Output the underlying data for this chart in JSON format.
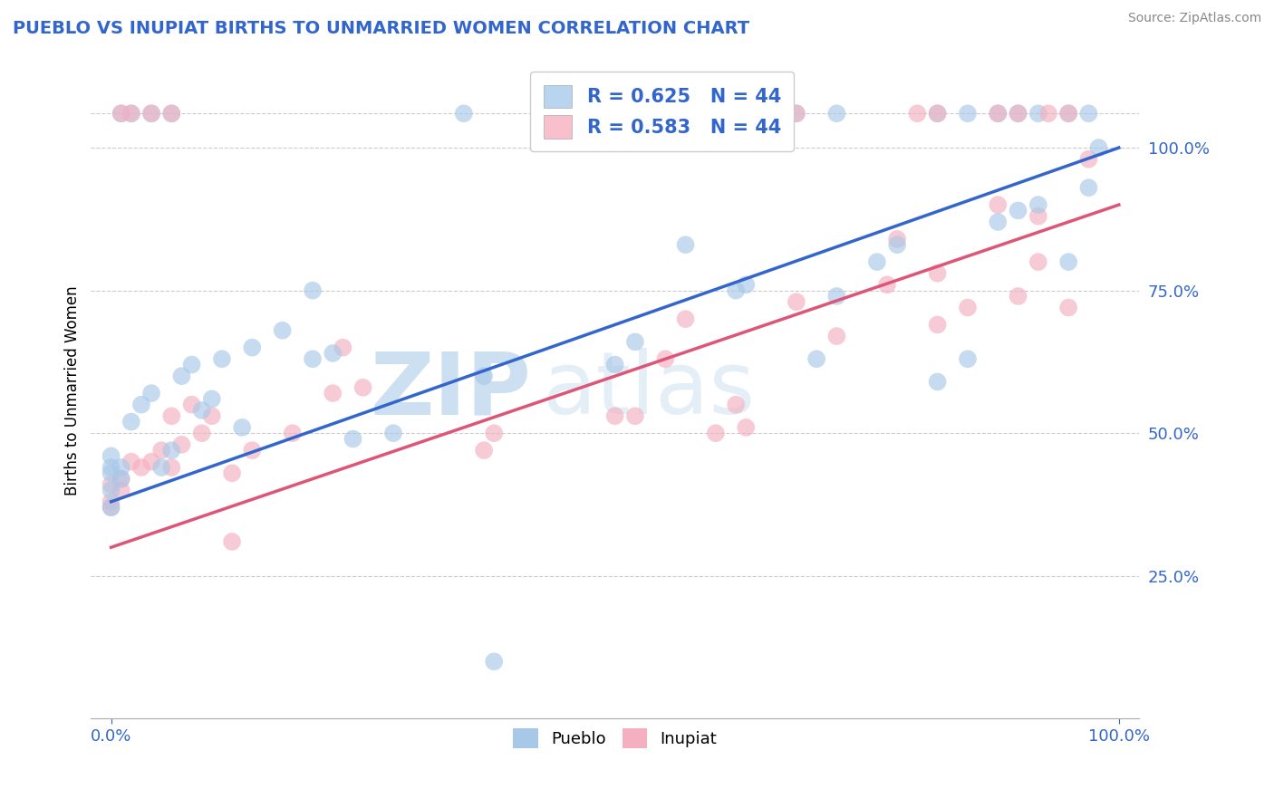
{
  "title": "PUEBLO VS INUPIAT BIRTHS TO UNMARRIED WOMEN CORRELATION CHART",
  "source_text": "Source: ZipAtlas.com",
  "ylabel": "Births to Unmarried Women",
  "xlim": [
    -0.02,
    1.02
  ],
  "ylim": [
    0.0,
    1.15
  ],
  "xtick_labels": [
    "0.0%",
    "100.0%"
  ],
  "xtick_values": [
    0.0,
    1.0
  ],
  "ytick_labels": [
    "25.0%",
    "50.0%",
    "75.0%",
    "100.0%"
  ],
  "ytick_values": [
    0.25,
    0.5,
    0.75,
    1.0
  ],
  "pueblo_color": "#a8c8e8",
  "inupiat_color": "#f4b0c0",
  "pueblo_line_color": "#3366cc",
  "inupiat_line_color": "#dd5577",
  "legend_box_color": "#b8d4ee",
  "legend_inupiat_box_color": "#f8c0cc",
  "R_pueblo": 0.625,
  "N_pueblo": 44,
  "R_inupiat": 0.583,
  "N_inupiat": 44,
  "watermark_zip": "ZIP",
  "watermark_atlas": "atlas",
  "pueblo_scatter_x": [
    0.0,
    0.0,
    0.0,
    0.0,
    0.0,
    0.01,
    0.01,
    0.02,
    0.03,
    0.04,
    0.05,
    0.06,
    0.07,
    0.08,
    0.09,
    0.1,
    0.11,
    0.13,
    0.14,
    0.17,
    0.2,
    0.22,
    0.24,
    0.28,
    0.37,
    0.38,
    0.5,
    0.52,
    0.57,
    0.62,
    0.63,
    0.7,
    0.72,
    0.76,
    0.78,
    0.82,
    0.85,
    0.88,
    0.9,
    0.92,
    0.95,
    0.97,
    0.98,
    0.2
  ],
  "pueblo_scatter_y": [
    0.37,
    0.4,
    0.43,
    0.44,
    0.46,
    0.42,
    0.44,
    0.52,
    0.55,
    0.57,
    0.44,
    0.47,
    0.6,
    0.62,
    0.54,
    0.56,
    0.63,
    0.51,
    0.65,
    0.68,
    0.63,
    0.64,
    0.49,
    0.5,
    0.6,
    0.1,
    0.62,
    0.66,
    0.83,
    0.75,
    0.76,
    0.63,
    0.74,
    0.8,
    0.83,
    0.59,
    0.63,
    0.87,
    0.89,
    0.9,
    0.8,
    0.93,
    1.0,
    0.75
  ],
  "inupiat_scatter_x": [
    0.0,
    0.0,
    0.0,
    0.01,
    0.01,
    0.02,
    0.03,
    0.04,
    0.05,
    0.06,
    0.06,
    0.07,
    0.08,
    0.09,
    0.1,
    0.12,
    0.14,
    0.18,
    0.22,
    0.25,
    0.37,
    0.38,
    0.5,
    0.52,
    0.55,
    0.57,
    0.62,
    0.68,
    0.72,
    0.77,
    0.78,
    0.82,
    0.85,
    0.88,
    0.9,
    0.92,
    0.95,
    0.97,
    0.12,
    0.23,
    0.6,
    0.63,
    0.82,
    0.92
  ],
  "inupiat_scatter_y": [
    0.37,
    0.38,
    0.41,
    0.4,
    0.42,
    0.45,
    0.44,
    0.45,
    0.47,
    0.44,
    0.53,
    0.48,
    0.55,
    0.5,
    0.53,
    0.31,
    0.47,
    0.5,
    0.57,
    0.58,
    0.47,
    0.5,
    0.53,
    0.53,
    0.63,
    0.7,
    0.55,
    0.73,
    0.67,
    0.76,
    0.84,
    0.69,
    0.72,
    0.9,
    0.74,
    0.88,
    0.72,
    0.98,
    0.43,
    0.65,
    0.5,
    0.51,
    0.78,
    0.8
  ],
  "top_row_blue_x": [
    0.01,
    0.02,
    0.04,
    0.06,
    0.35,
    0.6,
    0.63,
    0.68,
    0.72,
    0.82,
    0.85,
    0.88,
    0.9,
    0.92,
    0.95,
    0.97
  ],
  "top_row_pink_x": [
    0.01,
    0.02,
    0.04,
    0.06,
    0.6,
    0.68,
    0.8,
    0.82,
    0.88,
    0.9,
    0.93,
    0.95
  ],
  "pueblo_line_x0": 0.0,
  "pueblo_line_y0": 0.38,
  "pueblo_line_x1": 1.0,
  "pueblo_line_y1": 1.0,
  "inupiat_line_x0": 0.0,
  "inupiat_line_y0": 0.3,
  "inupiat_line_x1": 1.0,
  "inupiat_line_y1": 0.9
}
